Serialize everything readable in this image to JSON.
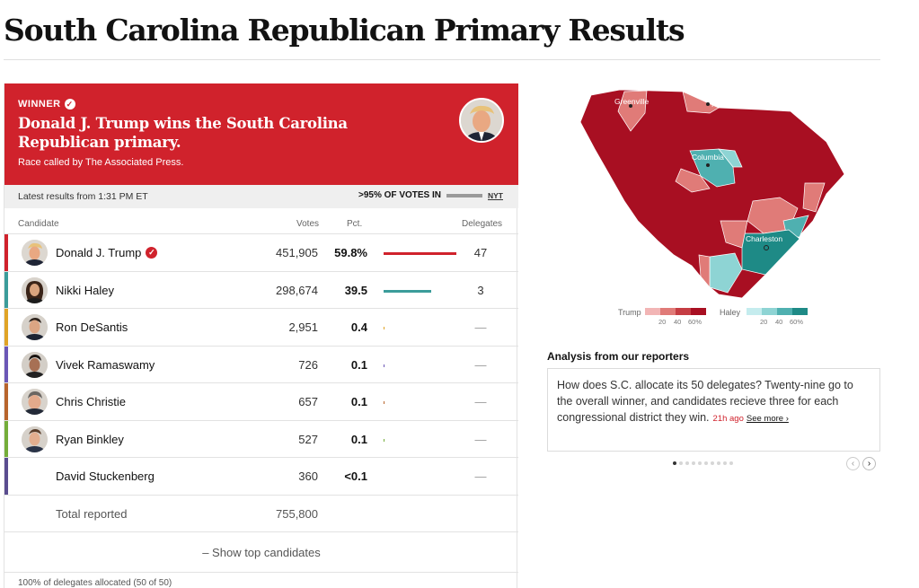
{
  "page": {
    "title": "South Carolina Republican Primary Results"
  },
  "banner": {
    "winner_label": "WINNER",
    "headline": "Donald J. Trump wins the South Carolina Republican primary.",
    "subline": "Race called by The Associated Press."
  },
  "status": {
    "latest": "Latest results from 1:31 PM ET",
    "votes_in": ">95% OF VOTES IN",
    "source": "NYT"
  },
  "table": {
    "headers": {
      "candidate": "Candidate",
      "votes": "Votes",
      "pct": "Pct.",
      "delegates": "Delegates"
    },
    "rows": [
      {
        "name": "Donald J. Trump",
        "votes": "451,905",
        "pct": "59.8%",
        "pct_value": 59.8,
        "delegates": "47",
        "color": "#d0222c",
        "winner": true
      },
      {
        "name": "Nikki Haley",
        "votes": "298,674",
        "pct": "39.5",
        "pct_value": 39.5,
        "delegates": "3",
        "color": "#3b9c9a",
        "winner": false
      },
      {
        "name": "Ron DeSantis",
        "votes": "2,951",
        "pct": "0.4",
        "pct_value": 0.4,
        "delegates": "—",
        "color": "#e0a426",
        "winner": false
      },
      {
        "name": "Vivek Ramaswamy",
        "votes": "726",
        "pct": "0.1",
        "pct_value": 0.1,
        "delegates": "—",
        "color": "#6b57b6",
        "winner": false
      },
      {
        "name": "Chris Christie",
        "votes": "657",
        "pct": "0.1",
        "pct_value": 0.1,
        "delegates": "—",
        "color": "#b8652d",
        "winner": false
      },
      {
        "name": "Ryan Binkley",
        "votes": "527",
        "pct": "0.1",
        "pct_value": 0.1,
        "delegates": "—",
        "color": "#74ad3a",
        "winner": false
      },
      {
        "name": "David Stuckenberg",
        "votes": "360",
        "pct": "<0.1",
        "pct_value": 0.0,
        "delegates": "—",
        "color": "#5a4d8f",
        "winner": false
      }
    ],
    "total": {
      "label": "Total reported",
      "votes": "755,800"
    }
  },
  "show_toggle": "– Show top candidates",
  "foot_note": "100% of delegates allocated (50 of 50)",
  "map": {
    "cities": [
      "Greenville",
      "Rock Hill",
      "Columbia",
      "Charleston"
    ],
    "legend": {
      "trump_label": "Trump",
      "haley_label": "Haley",
      "ticks": [
        "20",
        "40",
        "60%"
      ]
    },
    "trump_colors": [
      "#f2b5b5",
      "#e07b78",
      "#c53d43",
      "#a80f22"
    ],
    "haley_colors": [
      "#c5ecee",
      "#8ed4d4",
      "#4fb0b0",
      "#1e8a86"
    ]
  },
  "analysis": {
    "heading": "Analysis from our reporters",
    "body": "How does S.C. allocate its 50 delegates? Twenty-nine go to the overall winner, and candidates recieve three for each congressional district they win.",
    "ago": "21h ago",
    "see_more": "See more ›",
    "nav_prev": "‹",
    "nav_next": "›"
  }
}
